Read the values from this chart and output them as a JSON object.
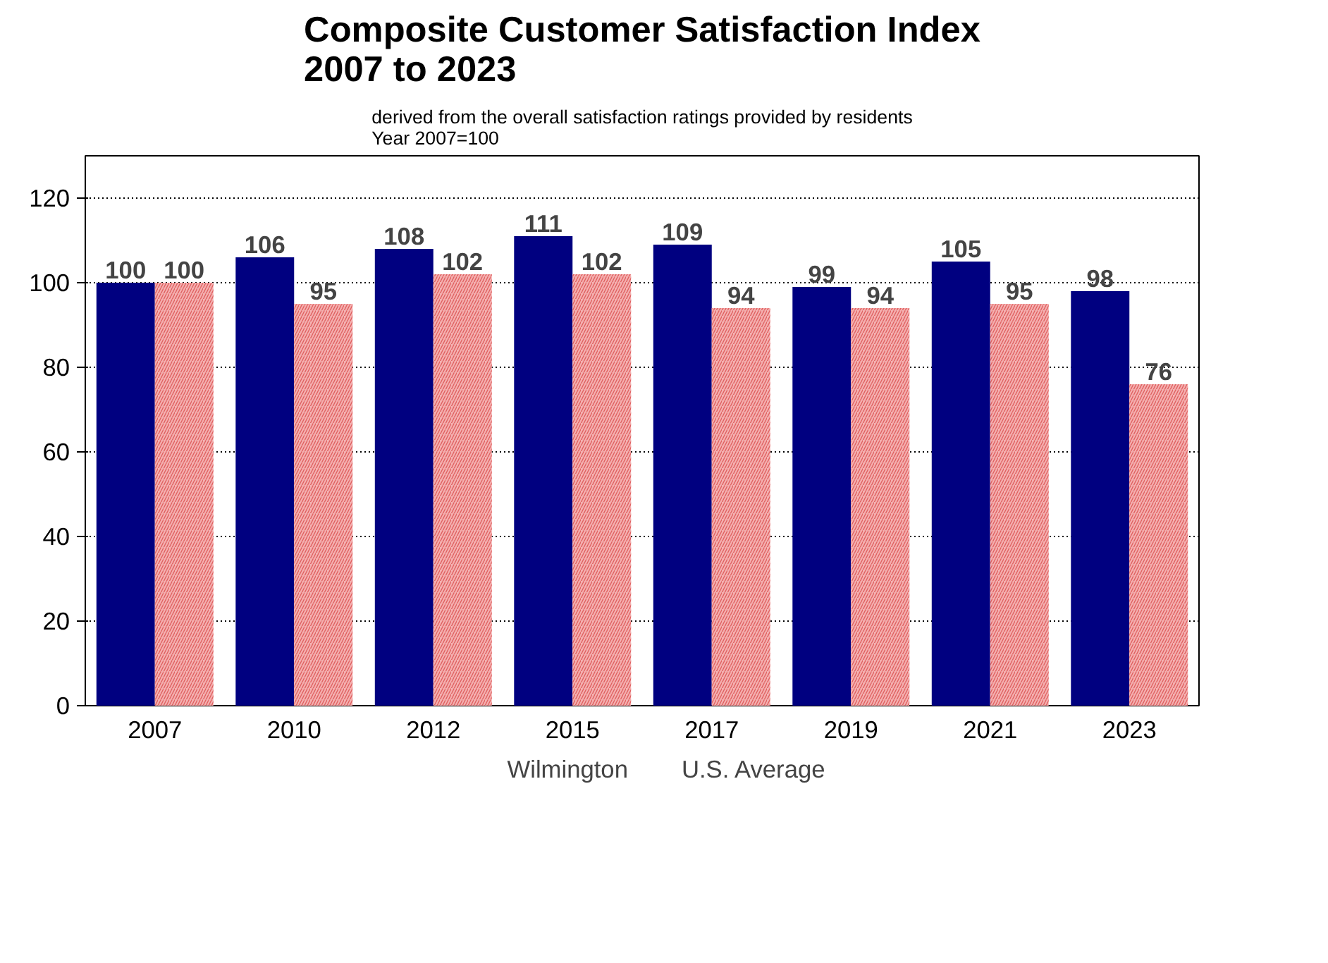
{
  "chart_data": {
    "type": "bar",
    "title": "Composite Customer Satisfaction Index\n2007 to 2023",
    "subtitle": "derived from the overall satisfaction ratings provided by residents\nYear 2007=100",
    "categories": [
      "2007",
      "2010",
      "2012",
      "2015",
      "2017",
      "2019",
      "2021",
      "2023"
    ],
    "series": [
      {
        "name": "Wilmington",
        "color": "#000080",
        "values": [
          100,
          106,
          108,
          111,
          109,
          99,
          105,
          98
        ]
      },
      {
        "name": "U.S. Average",
        "color": "#f4b0b0",
        "values": [
          100,
          95,
          102,
          102,
          94,
          94,
          95,
          76
        ]
      }
    ],
    "ylim": [
      0,
      130
    ],
    "yticks": [
      0,
      20,
      40,
      60,
      80,
      100,
      120
    ],
    "grid": "y",
    "data_labels": true,
    "legend": "bottom"
  }
}
